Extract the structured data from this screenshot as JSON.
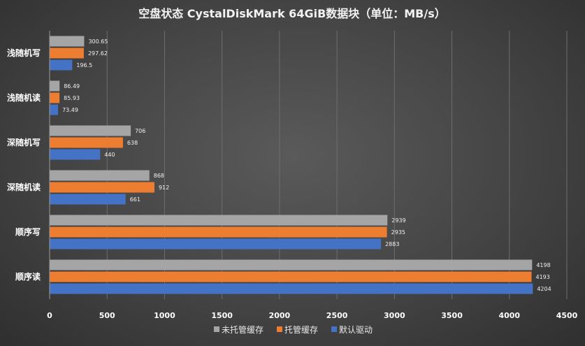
{
  "chart_data": {
    "type": "bar",
    "orientation": "horizontal",
    "title": "空盘状态   CystalDiskMark 64GiB数据块（单位：MB/s）",
    "categories": [
      "浅随机写",
      "浅随机读",
      "深随机写",
      "深随机读",
      "顺序写",
      "顺序读"
    ],
    "series": [
      {
        "name": "未托管缓存",
        "color": "#a5a5a5",
        "values": [
          300.65,
          86.49,
          706,
          868,
          2939,
          4198
        ],
        "labels": [
          "300.65",
          "86.49",
          "706",
          "868",
          "2939",
          "4198"
        ]
      },
      {
        "name": "托管缓存",
        "color": "#ed7d31",
        "values": [
          297.62,
          85.93,
          638,
          912,
          2935,
          4193
        ],
        "labels": [
          "297.62",
          "85.93",
          "638",
          "912",
          "2935",
          "4193"
        ]
      },
      {
        "name": "默认驱动",
        "color": "#4472c4",
        "values": [
          196.5,
          73.49,
          440,
          661,
          2883,
          4204
        ],
        "labels": [
          "196.5",
          "73.49",
          "440",
          "661",
          "2883",
          "4204"
        ]
      }
    ],
    "xlim": [
      0,
      4500
    ],
    "xticks": [
      0,
      500,
      1000,
      1500,
      2000,
      2500,
      3000,
      3500,
      4000,
      4500
    ],
    "grid": true,
    "legend_position": "bottom"
  }
}
